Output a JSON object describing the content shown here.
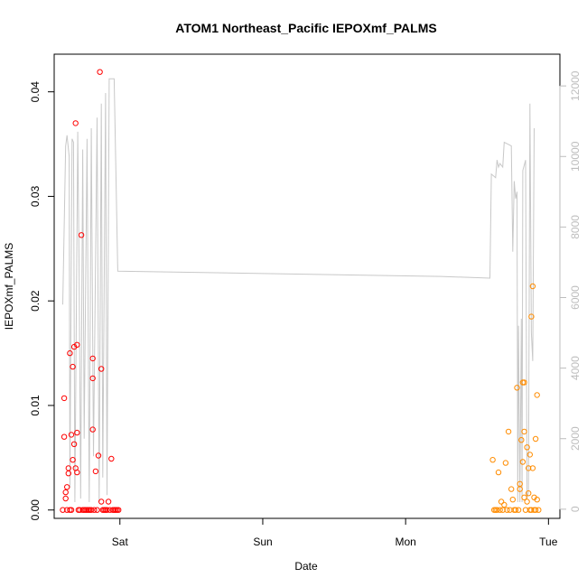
{
  "chart_data": {
    "type": "scatter",
    "title": "ATOM1 Northeast_Pacific IEPOXmf_PALMS",
    "xlabel": "Date",
    "ylabel": "IEPOXmf_PALMS",
    "x_ticks": [
      "Sat",
      "Sun",
      "Mon",
      "Tue"
    ],
    "x_axis_units": "days; tick positions Sat = 1, Sun = 2, Mon = 3, Tue = 4",
    "xlim": [
      0.54,
      4.08
    ],
    "ylim": [
      -0.0008,
      0.0436
    ],
    "y_ticks": [
      "0.00",
      "0.01",
      "0.02",
      "0.03",
      "0.04"
    ],
    "y2_ticks": [
      "0",
      "2000",
      "4000",
      "6000",
      "8000",
      "10000",
      "12000"
    ],
    "y2lim": [
      -260,
      12900
    ],
    "colors": {
      "series1": "#ff0000",
      "series2": "#ff8c00",
      "altitude": "#c8c8c8",
      "axis": "#000000",
      "axis2": "#bdbdbd"
    },
    "series": [
      {
        "marker": "circle",
        "color": "#ff0000",
        "points": [
          [
            0.6,
            0.0
          ],
          [
            0.61,
            0.0107
          ],
          [
            0.61,
            0.007
          ],
          [
            0.62,
            0.0017
          ],
          [
            0.62,
            0.0011
          ],
          [
            0.63,
            0.0
          ],
          [
            0.63,
            0.0022
          ],
          [
            0.64,
            0.0035
          ],
          [
            0.64,
            0.004
          ],
          [
            0.65,
            0.015
          ],
          [
            0.65,
            0.0
          ],
          [
            0.66,
            0.0
          ],
          [
            0.66,
            0.0072
          ],
          [
            0.67,
            0.0048
          ],
          [
            0.67,
            0.0137
          ],
          [
            0.68,
            0.0156
          ],
          [
            0.68,
            0.0063
          ],
          [
            0.69,
            0.004
          ],
          [
            0.69,
            0.037
          ],
          [
            0.7,
            0.0036
          ],
          [
            0.7,
            0.0158
          ],
          [
            0.7,
            0.0074
          ],
          [
            0.71,
            0.0
          ],
          [
            0.72,
            0.0
          ],
          [
            0.73,
            0.0263
          ],
          [
            0.74,
            0.0
          ],
          [
            0.75,
            0.0
          ],
          [
            0.76,
            0.0
          ],
          [
            0.77,
            0.0
          ],
          [
            0.78,
            0.0
          ],
          [
            0.79,
            0.0
          ],
          [
            0.8,
            0.0
          ],
          [
            0.81,
            0.0077
          ],
          [
            0.81,
            0.0145
          ],
          [
            0.81,
            0.0126
          ],
          [
            0.82,
            0.0
          ],
          [
            0.83,
            0.0037
          ],
          [
            0.84,
            0.0
          ],
          [
            0.85,
            0.0052
          ],
          [
            0.86,
            0.0419
          ],
          [
            0.87,
            0.0135
          ],
          [
            0.87,
            0.0008
          ],
          [
            0.88,
            0.0
          ],
          [
            0.89,
            0.0
          ],
          [
            0.9,
            0.0
          ],
          [
            0.91,
            0.0
          ],
          [
            0.92,
            0.0008
          ],
          [
            0.93,
            0.0
          ],
          [
            0.94,
            0.0049
          ],
          [
            0.95,
            0.0
          ],
          [
            0.96,
            0.0
          ],
          [
            0.97,
            0.0
          ],
          [
            0.98,
            0.0
          ],
          [
            0.99,
            0.0
          ]
        ]
      },
      {
        "marker": "circle",
        "color": "#ff8c00",
        "points": [
          [
            3.61,
            0.0048
          ],
          [
            3.62,
            0.0
          ],
          [
            3.63,
            0.0
          ],
          [
            3.64,
            0.0
          ],
          [
            3.65,
            0.0036
          ],
          [
            3.66,
            0.0
          ],
          [
            3.67,
            0.0008
          ],
          [
            3.68,
            0.0
          ],
          [
            3.69,
            0.0005
          ],
          [
            3.7,
            0.0045
          ],
          [
            3.71,
            0.0
          ],
          [
            3.72,
            0.0075
          ],
          [
            3.73,
            0.0
          ],
          [
            3.74,
            0.002
          ],
          [
            3.75,
            0.001
          ],
          [
            3.76,
            0.0
          ],
          [
            3.77,
            0.0
          ],
          [
            3.78,
            0.0117
          ],
          [
            3.79,
            0.0
          ],
          [
            3.8,
            0.0025
          ],
          [
            3.8,
            0.002
          ],
          [
            3.81,
            0.0067
          ],
          [
            3.82,
            0.0046
          ],
          [
            3.82,
            0.0122
          ],
          [
            3.83,
            0.0122
          ],
          [
            3.83,
            0.0075
          ],
          [
            3.83,
            0.0012
          ],
          [
            3.84,
            0.0
          ],
          [
            3.85,
            0.0008
          ],
          [
            3.85,
            0.006
          ],
          [
            3.86,
            0.0016
          ],
          [
            3.86,
            0.004
          ],
          [
            3.87,
            0.0
          ],
          [
            3.87,
            0.0053
          ],
          [
            3.88,
            0.0185
          ],
          [
            3.88,
            0.0
          ],
          [
            3.89,
            0.0214
          ],
          [
            3.89,
            0.004
          ],
          [
            3.9,
            0.0
          ],
          [
            3.9,
            0.0012
          ],
          [
            3.91,
            0.0
          ],
          [
            3.91,
            0.0068
          ],
          [
            3.92,
            0.001
          ],
          [
            3.92,
            0.011
          ],
          [
            3.93,
            0.0
          ]
        ]
      }
    ],
    "secondary_series": {
      "type": "line",
      "color": "#c8c8c8",
      "points": [
        [
          0.6,
          5800
        ],
        [
          0.62,
          10300
        ],
        [
          0.63,
          10600
        ],
        [
          0.645,
          10000
        ],
        [
          0.65,
          600
        ],
        [
          0.665,
          10500
        ],
        [
          0.675,
          10400
        ],
        [
          0.685,
          200
        ],
        [
          0.705,
          10700
        ],
        [
          0.715,
          6500
        ],
        [
          0.725,
          300
        ],
        [
          0.74,
          10200
        ],
        [
          0.75,
          2000
        ],
        [
          0.77,
          10500
        ],
        [
          0.785,
          200
        ],
        [
          0.8,
          10800
        ],
        [
          0.815,
          1500
        ],
        [
          0.84,
          11100
        ],
        [
          0.855,
          200
        ],
        [
          0.87,
          11500
        ],
        [
          0.88,
          900
        ],
        [
          0.9,
          11800
        ],
        [
          0.91,
          400
        ],
        [
          0.925,
          12200
        ],
        [
          0.96,
          12200
        ],
        [
          0.985,
          6750
        ],
        [
          3.25,
          6600
        ],
        [
          3.59,
          6550
        ],
        [
          3.6,
          9500
        ],
        [
          3.63,
          9400
        ],
        [
          3.64,
          9900
        ],
        [
          3.65,
          9700
        ],
        [
          3.66,
          9800
        ],
        [
          3.68,
          9700
        ],
        [
          3.69,
          10400
        ],
        [
          3.74,
          10300
        ],
        [
          3.75,
          7300
        ],
        [
          3.76,
          9300
        ],
        [
          3.77,
          8800
        ],
        [
          3.78,
          9000
        ],
        [
          3.785,
          200
        ],
        [
          3.79,
          5200
        ],
        [
          3.8,
          200
        ],
        [
          3.81,
          5400
        ],
        [
          3.815,
          200
        ],
        [
          3.82,
          9600
        ],
        [
          3.84,
          9900
        ],
        [
          3.85,
          300
        ],
        [
          3.86,
          500
        ],
        [
          3.87,
          11500
        ],
        [
          3.88,
          5000
        ],
        [
          3.89,
          4200
        ],
        [
          3.9,
          10800
        ]
      ]
    }
  }
}
